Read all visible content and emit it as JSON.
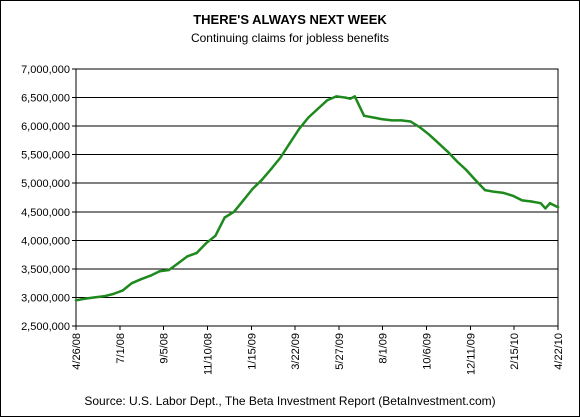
{
  "chart_data": {
    "type": "line",
    "title": "THERE'S ALWAYS NEXT WEEK",
    "subtitle": "Continuing claims for jobless benefits",
    "source": "Source: U.S. Labor Dept., The Beta Investment Report (BetaInvestment.com)",
    "xlabel": "",
    "ylabel": "",
    "ylim": [
      2500000,
      7000000
    ],
    "yticks": [
      2500000,
      3000000,
      3500000,
      4000000,
      4500000,
      5000000,
      5500000,
      6000000,
      6500000,
      7000000
    ],
    "ytick_labels": [
      "2,500,000",
      "3,000,000",
      "3,500,000",
      "4,000,000",
      "4,500,000",
      "5,000,000",
      "5,500,000",
      "6,000,000",
      "6,500,000",
      "7,000,000"
    ],
    "xlim": [
      "2008-04-26",
      "2010-04-22"
    ],
    "xticks": [
      "2008-04-26",
      "2008-07-01",
      "2008-09-05",
      "2008-11-10",
      "2009-01-15",
      "2009-03-22",
      "2009-05-27",
      "2009-08-01",
      "2009-10-06",
      "2009-12-11",
      "2010-02-15",
      "2010-04-22"
    ],
    "xtick_labels": [
      "4/26/08",
      "7/1/08",
      "9/5/08",
      "11/10/08",
      "1/15/09",
      "3/22/09",
      "5/27/09",
      "8/1/09",
      "10/6/09",
      "12/11/09",
      "2/15/10",
      "4/22/10"
    ],
    "grid": "horizontal",
    "legend": "none",
    "colors": {
      "line": "#1e8a1e",
      "grid": "#000000",
      "axis": "#000000"
    },
    "series": [
      {
        "x": [
          "2008-04-26",
          "2008-05-10",
          "2008-05-24",
          "2008-06-07",
          "2008-06-21",
          "2008-07-05",
          "2008-07-19",
          "2008-08-02",
          "2008-08-16",
          "2008-08-30",
          "2008-09-13",
          "2008-09-27",
          "2008-10-11",
          "2008-10-25",
          "2008-11-08",
          "2008-11-22",
          "2008-12-06",
          "2008-12-20",
          "2009-01-03",
          "2009-01-17",
          "2009-01-31",
          "2009-02-14",
          "2009-02-28",
          "2009-03-14",
          "2009-03-28",
          "2009-04-11",
          "2009-04-25",
          "2009-05-09",
          "2009-05-23",
          "2009-06-06",
          "2009-06-13",
          "2009-06-20",
          "2009-07-04",
          "2009-07-18",
          "2009-08-01",
          "2009-08-15",
          "2009-08-29",
          "2009-09-12",
          "2009-09-26",
          "2009-10-10",
          "2009-10-24",
          "2009-11-07",
          "2009-11-21",
          "2009-12-05",
          "2009-12-19",
          "2010-01-02",
          "2010-01-16",
          "2010-01-30",
          "2010-02-13",
          "2010-02-27",
          "2010-03-13",
          "2010-03-27",
          "2010-04-03",
          "2010-04-10",
          "2010-04-22"
        ],
        "y": [
          2950000,
          2980000,
          3000000,
          3020000,
          3060000,
          3120000,
          3250000,
          3320000,
          3380000,
          3460000,
          3480000,
          3600000,
          3720000,
          3780000,
          3950000,
          4080000,
          4400000,
          4500000,
          4700000,
          4900000,
          5060000,
          5250000,
          5450000,
          5700000,
          5950000,
          6150000,
          6300000,
          6450000,
          6520000,
          6500000,
          6480000,
          6520000,
          6180000,
          6150000,
          6120000,
          6100000,
          6100000,
          6080000,
          5980000,
          5850000,
          5700000,
          5550000,
          5380000,
          5230000,
          5050000,
          4880000,
          4850000,
          4830000,
          4780000,
          4700000,
          4680000,
          4650000,
          4560000,
          4650000,
          4580000
        ]
      }
    ]
  }
}
